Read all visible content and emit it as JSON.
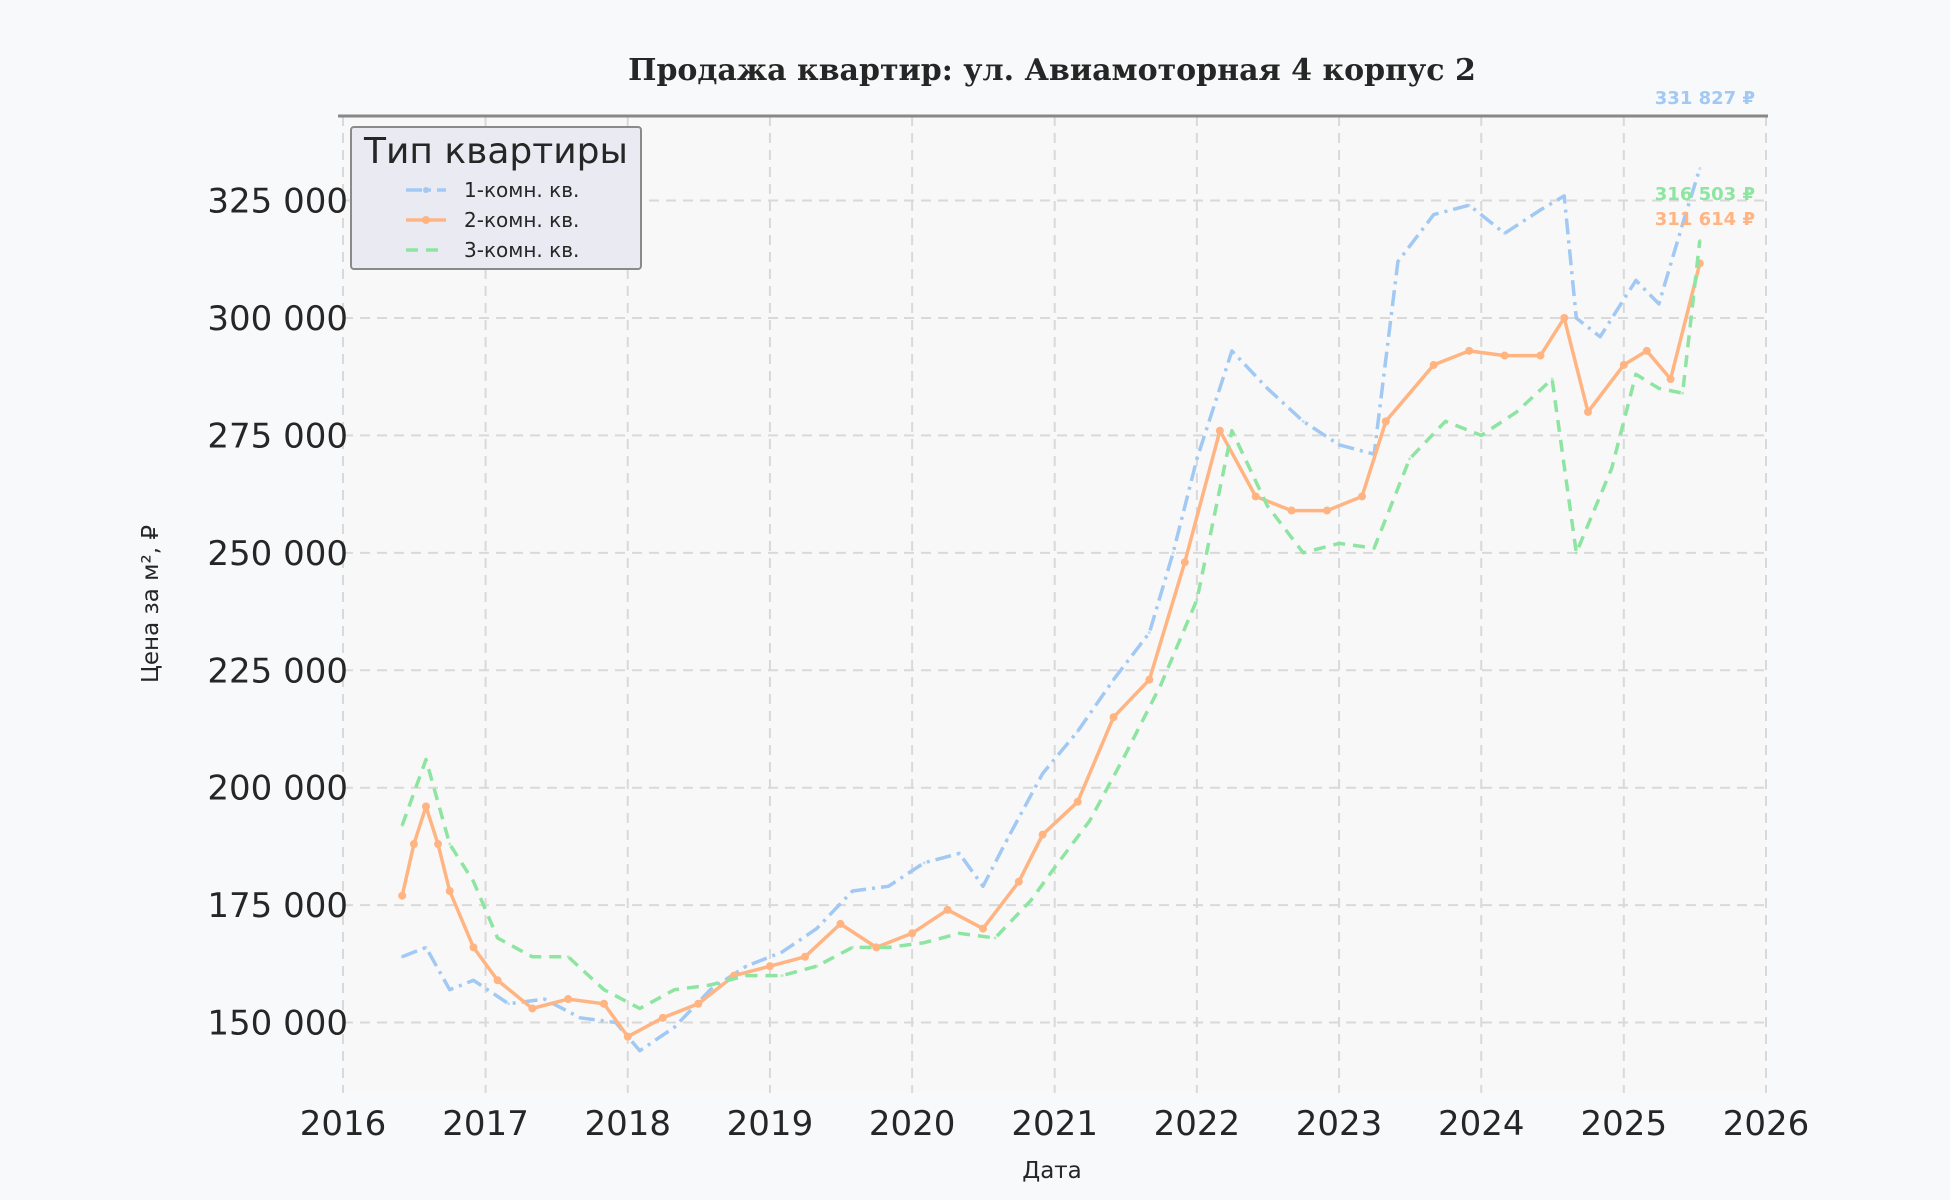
{
  "chart_data": {
    "type": "line",
    "title": "Продажа квартир: ул. Авиамоторная 4 корпус 2",
    "xlabel": "Дата",
    "ylabel": "Цена за м², ₽",
    "xlim": [
      "2016-01-01",
      "2026-01-01"
    ],
    "ylim": [
      135000,
      343000
    ],
    "x_ticks": [
      "2016",
      "2017",
      "2018",
      "2019",
      "2020",
      "2021",
      "2022",
      "2023",
      "2024",
      "2025",
      "2026"
    ],
    "y_ticks": [
      {
        "value": 150000,
        "label": "150 000"
      },
      {
        "value": 175000,
        "label": "175 000"
      },
      {
        "value": 200000,
        "label": "200 000"
      },
      {
        "value": 225000,
        "label": "225 000"
      },
      {
        "value": 250000,
        "label": "250 000"
      },
      {
        "value": 275000,
        "label": "275 000"
      },
      {
        "value": 300000,
        "label": "300 000"
      },
      {
        "value": 325000,
        "label": "325 000"
      }
    ],
    "grid": true,
    "legend": {
      "title": "Тип квартиры",
      "position": "top-left"
    },
    "series": [
      {
        "name": "1-комн. кв.",
        "color": "#a1c9f4",
        "style": "dashdot",
        "end_label": "331 827 ₽",
        "points": [
          [
            "2016-06-01",
            164000
          ],
          [
            "2016-08-01",
            166000
          ],
          [
            "2016-10-01",
            157000
          ],
          [
            "2016-12-01",
            159000
          ],
          [
            "2017-03-01",
            154000
          ],
          [
            "2017-06-01",
            155000
          ],
          [
            "2017-09-01",
            151000
          ],
          [
            "2017-12-01",
            150000
          ],
          [
            "2018-02-01",
            144000
          ],
          [
            "2018-05-01",
            149000
          ],
          [
            "2018-08-01",
            157000
          ],
          [
            "2018-11-01",
            162000
          ],
          [
            "2019-02-01",
            165000
          ],
          [
            "2019-05-01",
            170000
          ],
          [
            "2019-08-01",
            178000
          ],
          [
            "2019-11-01",
            179000
          ],
          [
            "2020-02-01",
            184000
          ],
          [
            "2020-05-01",
            186000
          ],
          [
            "2020-07-01",
            179000
          ],
          [
            "2020-09-01",
            189000
          ],
          [
            "2020-12-01",
            203000
          ],
          [
            "2021-03-01",
            212000
          ],
          [
            "2021-06-01",
            223000
          ],
          [
            "2021-09-01",
            233000
          ],
          [
            "2021-11-01",
            250000
          ],
          [
            "2022-01-01",
            270000
          ],
          [
            "2022-04-01",
            293000
          ],
          [
            "2022-07-01",
            285000
          ],
          [
            "2022-10-01",
            278000
          ],
          [
            "2023-01-01",
            273000
          ],
          [
            "2023-04-01",
            271000
          ],
          [
            "2023-06-01",
            312000
          ],
          [
            "2023-09-01",
            322000
          ],
          [
            "2023-12-01",
            324000
          ],
          [
            "2024-03-01",
            318000
          ],
          [
            "2024-06-01",
            323000
          ],
          [
            "2024-08-01",
            326000
          ],
          [
            "2024-09-01",
            300000
          ],
          [
            "2024-11-01",
            296000
          ],
          [
            "2025-02-01",
            308000
          ],
          [
            "2025-04-01",
            303000
          ],
          [
            "2025-06-01",
            320000
          ],
          [
            "2025-07-15",
            331827
          ]
        ]
      },
      {
        "name": "2-комн. кв.",
        "color": "#ffb482",
        "style": "solid-markers",
        "end_label": "311 614 ₽",
        "points": [
          [
            "2016-06-01",
            177000
          ],
          [
            "2016-07-01",
            188000
          ],
          [
            "2016-08-01",
            196000
          ],
          [
            "2016-09-01",
            188000
          ],
          [
            "2016-10-01",
            178000
          ],
          [
            "2016-12-01",
            166000
          ],
          [
            "2017-02-01",
            159000
          ],
          [
            "2017-05-01",
            153000
          ],
          [
            "2017-08-01",
            155000
          ],
          [
            "2017-11-01",
            154000
          ],
          [
            "2018-01-01",
            147000
          ],
          [
            "2018-04-01",
            151000
          ],
          [
            "2018-07-01",
            154000
          ],
          [
            "2018-10-01",
            160000
          ],
          [
            "2019-01-01",
            162000
          ],
          [
            "2019-04-01",
            164000
          ],
          [
            "2019-07-01",
            171000
          ],
          [
            "2019-10-01",
            166000
          ],
          [
            "2020-01-01",
            169000
          ],
          [
            "2020-04-01",
            174000
          ],
          [
            "2020-07-01",
            170000
          ],
          [
            "2020-10-01",
            180000
          ],
          [
            "2020-12-01",
            190000
          ],
          [
            "2021-03-01",
            197000
          ],
          [
            "2021-06-01",
            215000
          ],
          [
            "2021-09-01",
            223000
          ],
          [
            "2021-12-01",
            248000
          ],
          [
            "2022-03-01",
            276000
          ],
          [
            "2022-06-01",
            262000
          ],
          [
            "2022-09-01",
            259000
          ],
          [
            "2022-12-01",
            259000
          ],
          [
            "2023-03-01",
            262000
          ],
          [
            "2023-05-01",
            278000
          ],
          [
            "2023-09-01",
            290000
          ],
          [
            "2023-12-01",
            293000
          ],
          [
            "2024-03-01",
            292000
          ],
          [
            "2024-06-01",
            292000
          ],
          [
            "2024-08-01",
            300000
          ],
          [
            "2024-10-01",
            280000
          ],
          [
            "2025-01-01",
            290000
          ],
          [
            "2025-03-01",
            293000
          ],
          [
            "2025-05-01",
            287000
          ],
          [
            "2025-07-15",
            311614
          ]
        ]
      },
      {
        "name": "3-комн. кв.",
        "color": "#8de5a1",
        "style": "dashed",
        "end_label": "316 503 ₽",
        "points": [
          [
            "2016-06-01",
            192000
          ],
          [
            "2016-08-01",
            206000
          ],
          [
            "2016-10-01",
            188000
          ],
          [
            "2016-12-01",
            180000
          ],
          [
            "2017-02-01",
            168000
          ],
          [
            "2017-05-01",
            164000
          ],
          [
            "2017-08-01",
            164000
          ],
          [
            "2017-11-01",
            157000
          ],
          [
            "2018-02-01",
            153000
          ],
          [
            "2018-05-01",
            157000
          ],
          [
            "2018-08-01",
            158000
          ],
          [
            "2018-11-01",
            160000
          ],
          [
            "2019-02-01",
            160000
          ],
          [
            "2019-05-01",
            162000
          ],
          [
            "2019-08-01",
            166000
          ],
          [
            "2019-11-01",
            166000
          ],
          [
            "2020-02-01",
            167000
          ],
          [
            "2020-05-01",
            169000
          ],
          [
            "2020-08-01",
            168000
          ],
          [
            "2020-11-01",
            176000
          ],
          [
            "2021-01-01",
            183000
          ],
          [
            "2021-04-01",
            193000
          ],
          [
            "2021-07-01",
            207000
          ],
          [
            "2021-10-01",
            222000
          ],
          [
            "2022-01-01",
            240000
          ],
          [
            "2022-04-01",
            276000
          ],
          [
            "2022-07-01",
            260000
          ],
          [
            "2022-10-01",
            250000
          ],
          [
            "2023-01-01",
            252000
          ],
          [
            "2023-04-01",
            251000
          ],
          [
            "2023-07-01",
            270000
          ],
          [
            "2023-10-01",
            278000
          ],
          [
            "2024-01-01",
            275000
          ],
          [
            "2024-04-01",
            280000
          ],
          [
            "2024-07-01",
            287000
          ],
          [
            "2024-09-01",
            250000
          ],
          [
            "2024-12-01",
            268000
          ],
          [
            "2025-02-01",
            288000
          ],
          [
            "2025-04-01",
            285000
          ],
          [
            "2025-06-01",
            284000
          ],
          [
            "2025-07-15",
            316503
          ]
        ]
      }
    ]
  }
}
